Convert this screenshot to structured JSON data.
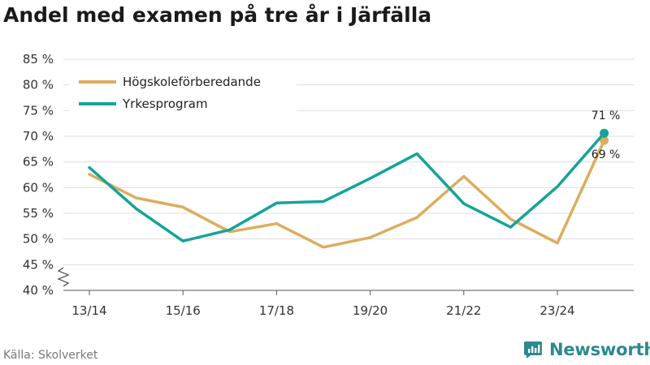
{
  "title": "Andel med examen på tre år i Järfälla",
  "source": "Källa: Skolverket",
  "brand": {
    "name": "Newsworthy",
    "color": "#2b8a8f",
    "icon": "newsworthy-logo-icon"
  },
  "chart_data": {
    "type": "line",
    "title": "Andel med examen på tre år i Järfälla",
    "xlabel": "",
    "ylabel": "",
    "ylim": [
      40,
      85
    ],
    "y_ticks": [
      "40 %",
      "45 %",
      "50 %",
      "55 %",
      "60 %",
      "65 %",
      "70 %",
      "75 %",
      "80 %",
      "85 %"
    ],
    "y_tick_values": [
      40,
      45,
      50,
      55,
      60,
      65,
      70,
      75,
      80,
      85
    ],
    "axis_break": true,
    "grid": true,
    "legend_position": "top-left",
    "categories": [
      "13/14",
      "14/15",
      "15/16",
      "16/17",
      "17/18",
      "18/19",
      "19/20",
      "20/21",
      "21/22",
      "22/23",
      "23/24",
      "24/25"
    ],
    "x_tick_labels": [
      "13/14",
      "",
      "15/16",
      "",
      "17/18",
      "",
      "19/20",
      "",
      "21/22",
      "",
      "23/24",
      ""
    ],
    "series": [
      {
        "name": "Högskoleförberedande",
        "color": "#dcad5e",
        "values": [
          62.6,
          58.0,
          56.2,
          51.4,
          53.0,
          48.4,
          50.3,
          54.2,
          62.2,
          53.9,
          49.2,
          69.2
        ],
        "end_label": "69 %"
      },
      {
        "name": "Yrkesprogram",
        "color": "#15a39a",
        "values": [
          63.9,
          55.9,
          49.6,
          51.8,
          57.0,
          57.3,
          61.8,
          66.6,
          56.9,
          52.3,
          60.2,
          70.6
        ],
        "end_label": "71 %"
      }
    ]
  }
}
